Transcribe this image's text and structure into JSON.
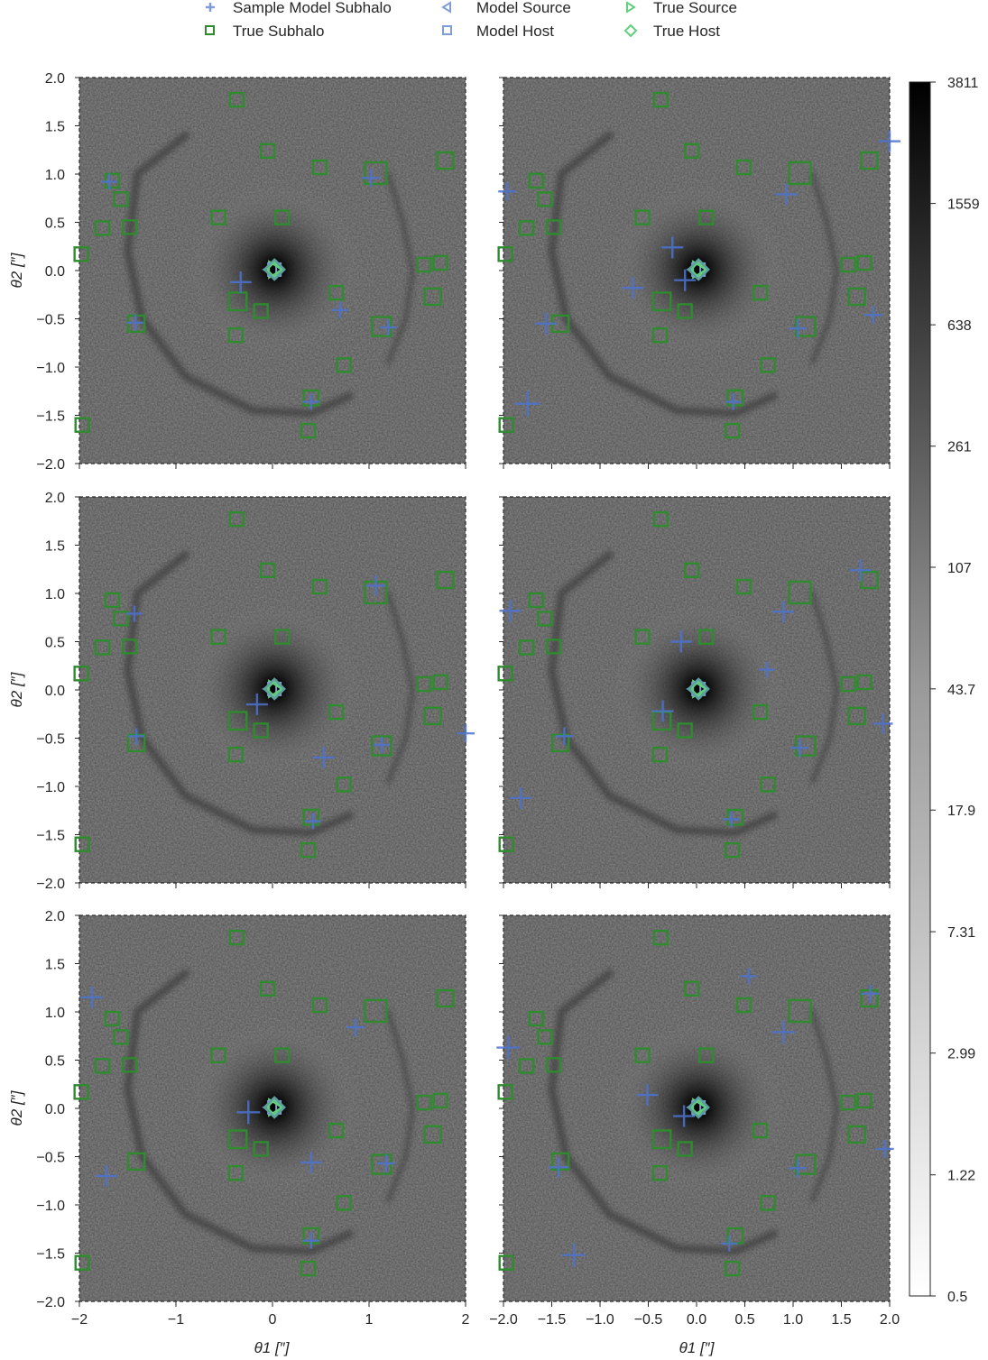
{
  "legend": {
    "items": [
      {
        "label": "Sample Model Subhalo",
        "marker": "plus",
        "color": "#4c72d0"
      },
      {
        "label": "Model Source",
        "marker": "triangle-left",
        "color": "#7f9ed8"
      },
      {
        "label": "True Source",
        "marker": "triangle-right",
        "color": "#5fd17c"
      },
      {
        "label": "True Subhalo",
        "marker": "square",
        "color": "#2e8b2e"
      },
      {
        "label": "Model Host",
        "marker": "square",
        "color": "#7f9ed8"
      },
      {
        "label": "True Host",
        "marker": "diamond",
        "color": "#5fd17c"
      }
    ]
  },
  "axes": {
    "xlabel": "θ1 [″]",
    "ylabel": "θ2 [″]",
    "xlim": [
      -2.0,
      2.0
    ],
    "ylim": [
      -2.0,
      2.0
    ],
    "yticks": [
      "−2.0",
      "−1.5",
      "−1.0",
      "−0.5",
      "0.0",
      "0.5",
      "1.0",
      "1.5",
      "2.0"
    ],
    "xticks_left": [
      "−2",
      "−1",
      "0",
      "1",
      "2"
    ],
    "xticks_right": [
      "−2.0",
      "−1.5",
      "−1.0",
      "−0.5",
      "0.0",
      "0.5",
      "1.0",
      "1.5",
      "2.0"
    ]
  },
  "colorbar": {
    "scale": "log",
    "range": [
      0.5,
      3811
    ],
    "ticks": [
      "3811",
      "1559",
      "638",
      "261",
      "107",
      "43.7",
      "17.9",
      "7.31",
      "2.99",
      "1.22",
      "0.5"
    ]
  },
  "colors": {
    "true_subhalo": "#2e8b2e",
    "model_subhalo": "#4c72d0",
    "host": "#5f9ea0",
    "background": "#8c8c8c"
  },
  "chart_data": {
    "type": "scatter",
    "image": "lensed arc image (log-scaled, grayscale) with host galaxy at center",
    "true_subhalos": [
      {
        "x": -1.66,
        "y": 0.93,
        "size": 1
      },
      {
        "x": -1.57,
        "y": 0.74,
        "size": 1
      },
      {
        "x": -1.76,
        "y": 0.44,
        "size": 1
      },
      {
        "x": -1.48,
        "y": 0.45,
        "size": 1
      },
      {
        "x": -1.98,
        "y": 0.17,
        "size": 1
      },
      {
        "x": -1.41,
        "y": -0.55,
        "size": 1.2
      },
      {
        "x": -1.97,
        "y": -1.6,
        "size": 1
      },
      {
        "x": -0.37,
        "y": 1.77,
        "size": 1
      },
      {
        "x": -0.05,
        "y": 1.24,
        "size": 1
      },
      {
        "x": 0.49,
        "y": 1.07,
        "size": 1
      },
      {
        "x": 1.07,
        "y": 1.01,
        "size": 1.6
      },
      {
        "x": 1.79,
        "y": 1.14,
        "size": 1.2
      },
      {
        "x": -0.56,
        "y": 0.55,
        "size": 1
      },
      {
        "x": 0.1,
        "y": 0.55,
        "size": 1
      },
      {
        "x": 1.57,
        "y": 0.06,
        "size": 1
      },
      {
        "x": 1.74,
        "y": 0.08,
        "size": 1
      },
      {
        "x": 0.66,
        "y": -0.23,
        "size": 1
      },
      {
        "x": 1.66,
        "y": -0.27,
        "size": 1.2
      },
      {
        "x": -0.36,
        "y": -0.32,
        "size": 1.3
      },
      {
        "x": -0.12,
        "y": -0.42,
        "size": 1
      },
      {
        "x": 1.13,
        "y": -0.58,
        "size": 1.4
      },
      {
        "x": -0.38,
        "y": -0.67,
        "size": 1
      },
      {
        "x": 0.74,
        "y": -0.98,
        "size": 1
      },
      {
        "x": 0.4,
        "y": -1.32,
        "size": 1.1
      },
      {
        "x": 0.37,
        "y": -1.66,
        "size": 1
      }
    ],
    "host": {
      "x": 0.02,
      "y": 0.01
    },
    "panels": [
      {
        "model_subhalos": [
          {
            "x": -1.69,
            "y": 0.92,
            "size": 0.9
          },
          {
            "x": 1.02,
            "y": 0.96,
            "size": 1.0
          },
          {
            "x": -0.33,
            "y": -0.12,
            "size": 1.2
          },
          {
            "x": 0.7,
            "y": -0.41,
            "size": 0.9
          },
          {
            "x": -1.42,
            "y": -0.54,
            "size": 0.9
          },
          {
            "x": 1.2,
            "y": -0.59,
            "size": 0.9
          },
          {
            "x": 0.4,
            "y": -1.36,
            "size": 0.9
          }
        ]
      },
      {
        "model_subhalos": [
          {
            "x": 2.0,
            "y": 1.34,
            "size": 1.2
          },
          {
            "x": -1.96,
            "y": 0.82,
            "size": 1.0
          },
          {
            "x": 0.93,
            "y": 0.79,
            "size": 1.2
          },
          {
            "x": -0.25,
            "y": 0.24,
            "size": 1.2
          },
          {
            "x": -0.66,
            "y": -0.18,
            "size": 1.2
          },
          {
            "x": -0.12,
            "y": -0.1,
            "size": 1.2
          },
          {
            "x": -1.56,
            "y": -0.55,
            "size": 1.2
          },
          {
            "x": 1.05,
            "y": -0.6,
            "size": 1.0
          },
          {
            "x": 1.83,
            "y": -0.46,
            "size": 1.0
          },
          {
            "x": -1.75,
            "y": -1.38,
            "size": 1.4
          },
          {
            "x": 0.38,
            "y": -1.36,
            "size": 0.9
          }
        ]
      },
      {
        "model_subhalos": [
          {
            "x": -1.43,
            "y": 0.79,
            "size": 0.9
          },
          {
            "x": 1.07,
            "y": 1.08,
            "size": 1.1
          },
          {
            "x": -0.16,
            "y": -0.15,
            "size": 1.2
          },
          {
            "x": -1.41,
            "y": -0.48,
            "size": 0.9
          },
          {
            "x": 2.0,
            "y": -0.45,
            "size": 1.0
          },
          {
            "x": 1.13,
            "y": -0.57,
            "size": 0.9
          },
          {
            "x": 0.53,
            "y": -0.7,
            "size": 1.2
          },
          {
            "x": 0.42,
            "y": -1.36,
            "size": 0.9
          }
        ]
      },
      {
        "model_subhalos": [
          {
            "x": 1.7,
            "y": 1.24,
            "size": 1.2
          },
          {
            "x": -1.93,
            "y": 0.82,
            "size": 1.2
          },
          {
            "x": 0.9,
            "y": 0.81,
            "size": 1.2
          },
          {
            "x": -0.16,
            "y": 0.5,
            "size": 1.2
          },
          {
            "x": 0.73,
            "y": 0.21,
            "size": 0.9
          },
          {
            "x": -0.35,
            "y": -0.22,
            "size": 1.2
          },
          {
            "x": -1.37,
            "y": -0.48,
            "size": 1.0
          },
          {
            "x": 1.93,
            "y": -0.35,
            "size": 1.1
          },
          {
            "x": 1.07,
            "y": -0.6,
            "size": 1.0
          },
          {
            "x": -1.82,
            "y": -1.12,
            "size": 1.2
          },
          {
            "x": 0.36,
            "y": -1.34,
            "size": 0.9
          }
        ]
      },
      {
        "model_subhalos": [
          {
            "x": -1.87,
            "y": 1.15,
            "size": 1.2
          },
          {
            "x": 0.86,
            "y": 0.84,
            "size": 1.0
          },
          {
            "x": -0.25,
            "y": -0.04,
            "size": 1.3
          },
          {
            "x": 0.4,
            "y": -0.56,
            "size": 1.2
          },
          {
            "x": 1.18,
            "y": -0.57,
            "size": 1.0
          },
          {
            "x": -1.72,
            "y": -0.7,
            "size": 1.2
          },
          {
            "x": 0.4,
            "y": -1.37,
            "size": 0.9
          }
        ]
      },
      {
        "model_subhalos": [
          {
            "x": 0.54,
            "y": 1.37,
            "size": 0.9
          },
          {
            "x": 1.8,
            "y": 1.19,
            "size": 1.0
          },
          {
            "x": 0.9,
            "y": 0.79,
            "size": 1.3
          },
          {
            "x": -1.95,
            "y": 0.63,
            "size": 1.3
          },
          {
            "x": -0.51,
            "y": 0.14,
            "size": 1.2
          },
          {
            "x": -0.13,
            "y": -0.08,
            "size": 1.2
          },
          {
            "x": -1.43,
            "y": -0.61,
            "size": 1.1
          },
          {
            "x": 1.05,
            "y": -0.62,
            "size": 1.0
          },
          {
            "x": 1.95,
            "y": -0.42,
            "size": 1.0
          },
          {
            "x": -1.27,
            "y": -1.52,
            "size": 1.3
          },
          {
            "x": 0.34,
            "y": -1.4,
            "size": 0.9
          }
        ]
      }
    ]
  }
}
